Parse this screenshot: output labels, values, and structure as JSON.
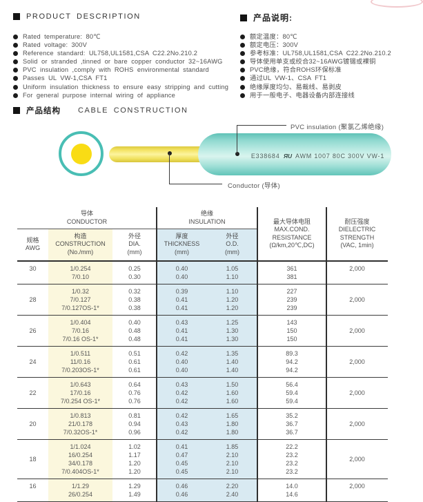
{
  "header": {
    "en_title": "PRODUCT DESCRIPTION",
    "cn_title": "产品说明:",
    "en_items": [
      "Rated temperature: 80℃",
      "Rated voltage: 300V",
      "Reference standard: UL758,UL1581,CSA C22.2No.210.2",
      "Solid or stranded ,tinned or bare copper conductor 32~16AWG",
      "PVC insulation ,comply with ROHS environmental standard",
      "Passes UL VW-1,CSA FT1",
      "Uniform insulation thickness to ensure easy stripping and cutting",
      "For general purpose internal wiring of appliance"
    ],
    "cn_items": [
      "额定温度：80℃",
      "额定电压：300V",
      "参考标准：UL758,UL1581,CSA C22.2No.210.2",
      "导体使用单支或绞合32~16AWG镀锡或裸铜",
      "PVC绝缘，符合ROHS环保标准",
      "通过UL VW-1、CSA FT1",
      "绝缘厚度均匀、易裁线、易剥皮",
      "用于一般电子、电器设备内部连接线"
    ]
  },
  "construction": {
    "cn_title": "产品结构",
    "en_title": "CABLE CONSTRUCTION",
    "pvc_label": "PVC insulation (聚氯乙烯绝缘)",
    "conductor_label": "Conductor (导体)",
    "print_cert": "E338684",
    "print_ul_mark": "ЯU",
    "print_spec": "AWM 1007 80C 300V VW-1"
  },
  "table": {
    "groups": {
      "conductor": "导体\nCONDUCTOR",
      "insulation": "绝缘\nINSULATION"
    },
    "headers": {
      "awg": "规格\nAWG",
      "construction": "构造\nCONSTRUCTION\n(No./mm)",
      "dia": "外径\nDIA.\n(mm)",
      "thickness": "厚度\nTHICKNESS\n(mm)",
      "od": "外径\nO.D.\n(mm)",
      "resistance": "最大导体电阻\nMAX.COND.\nRESISTANCE\n(Ω/km,20℃,DC)",
      "dielectric": "耐压强度\nDIELECTRIC\nSTRENGTH\n(VAC, 1min)"
    },
    "rows": [
      {
        "awg": "30",
        "valign": "top",
        "dielectric": "2,000",
        "lines": [
          [
            "1/0.254",
            "0.25",
            "0.40",
            "1.05",
            "361"
          ],
          [
            "7/0.10",
            "0.30",
            "0.40",
            "1.10",
            "381"
          ]
        ]
      },
      {
        "awg": "28",
        "valign": "center",
        "dielectric": "2,000",
        "lines": [
          [
            "1/0.32",
            "0.32",
            "0.39",
            "1.10",
            "227"
          ],
          [
            "7/0.127",
            "0.38",
            "0.41",
            "1.20",
            "239"
          ],
          [
            "7/0.127OS-1*",
            "0.38",
            "0.41",
            "1.20",
            "239"
          ]
        ]
      },
      {
        "awg": "26",
        "valign": "center",
        "dielectric": "2,000",
        "lines": [
          [
            "1/0.404",
            "0.40",
            "0.43",
            "1.25",
            "143"
          ],
          [
            "7/0.16",
            "0.48",
            "0.41",
            "1.30",
            "150"
          ],
          [
            "7/0.16 OS-1*",
            "0.48",
            "0.41",
            "1.30",
            "150"
          ]
        ]
      },
      {
        "awg": "24",
        "valign": "center",
        "dielectric": "2,000",
        "lines": [
          [
            "1/0.511",
            "0.51",
            "0.42",
            "1.35",
            "89.3"
          ],
          [
            "11/0.16",
            "0.61",
            "0.40",
            "1.40",
            "94.2"
          ],
          [
            "7/0.203OS-1*",
            "0.61",
            "0.40",
            "1.40",
            "94.2"
          ]
        ]
      },
      {
        "awg": "22",
        "valign": "center",
        "dielectric": "2,000",
        "lines": [
          [
            "1/0.643",
            "0.64",
            "0.43",
            "1.50",
            "56.4"
          ],
          [
            "17/0.16",
            "0.76",
            "0.42",
            "1.60",
            "59.4"
          ],
          [
            "7/0.254 OS-1*",
            "0.76",
            "0.42",
            "1.60",
            "59.4"
          ]
        ]
      },
      {
        "awg": "20",
        "valign": "center",
        "dielectric": "2,000",
        "lines": [
          [
            "1/0.813",
            "0.81",
            "0.42",
            "1.65",
            "35.2"
          ],
          [
            "21/0.178",
            "0.94",
            "0.43",
            "1.80",
            "36.7"
          ],
          [
            "7/0.32OS-1*",
            "0.96",
            "0.42",
            "1.80",
            "36.7"
          ]
        ]
      },
      {
        "awg": "18",
        "valign": "center",
        "dielectric": "2,000",
        "lines": [
          [
            "1/1.024",
            "1.02",
            "0.41",
            "1.85",
            "22.2"
          ],
          [
            "16/0.254",
            "1.17",
            "0.47",
            "2.10",
            "23.2"
          ],
          [
            "34/0.178",
            "1.20",
            "0.45",
            "2.10",
            "23.2"
          ],
          [
            "7/0.404OS-1*",
            "1.20",
            "0.45",
            "2.10",
            "23.2"
          ]
        ]
      },
      {
        "awg": "16",
        "valign": "top",
        "dielectric": "2,000",
        "lines": [
          [
            "1/1.29",
            "1.29",
            "0.46",
            "2.20",
            "14.0"
          ],
          [
            "26/0.254",
            "1.49",
            "0.46",
            "2.40",
            "14.6"
          ]
        ]
      }
    ]
  },
  "colors": {
    "teal": "#49BEB4",
    "core_yellow": "#F9DC15",
    "construction_col_bg": "#FBF7DD",
    "insulation_col_bg": "#D9EAF2"
  }
}
